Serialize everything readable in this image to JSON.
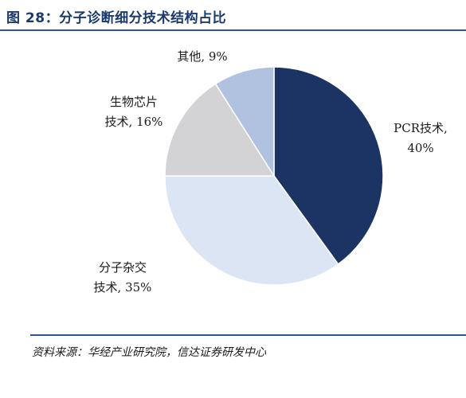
{
  "figure": {
    "title": "图 28：分子诊断细分技术结构占比",
    "source": "资料来源：华经产业研究院，信达证券研发中心"
  },
  "chart_data": {
    "type": "pie",
    "title": "图 28：分子诊断细分技术结构占比",
    "legend": "none",
    "slices": [
      {
        "name": "PCR技术",
        "value": 40,
        "label_lines": [
          "PCR技术,",
          "40%"
        ],
        "color": "#1c3463"
      },
      {
        "name": "分子杂交技术",
        "value": 35,
        "label_lines": [
          "分子杂交",
          "技术, 35%"
        ],
        "color": "#dbe5f4"
      },
      {
        "name": "生物芯片技术",
        "value": 16,
        "label_lines": [
          "生物芯片",
          "技术, 16%"
        ],
        "color": "#d3d3d5"
      },
      {
        "name": "其他",
        "value": 9,
        "label_lines": [
          "其他, 9%"
        ],
        "color": "#b1c1e0"
      }
    ]
  }
}
